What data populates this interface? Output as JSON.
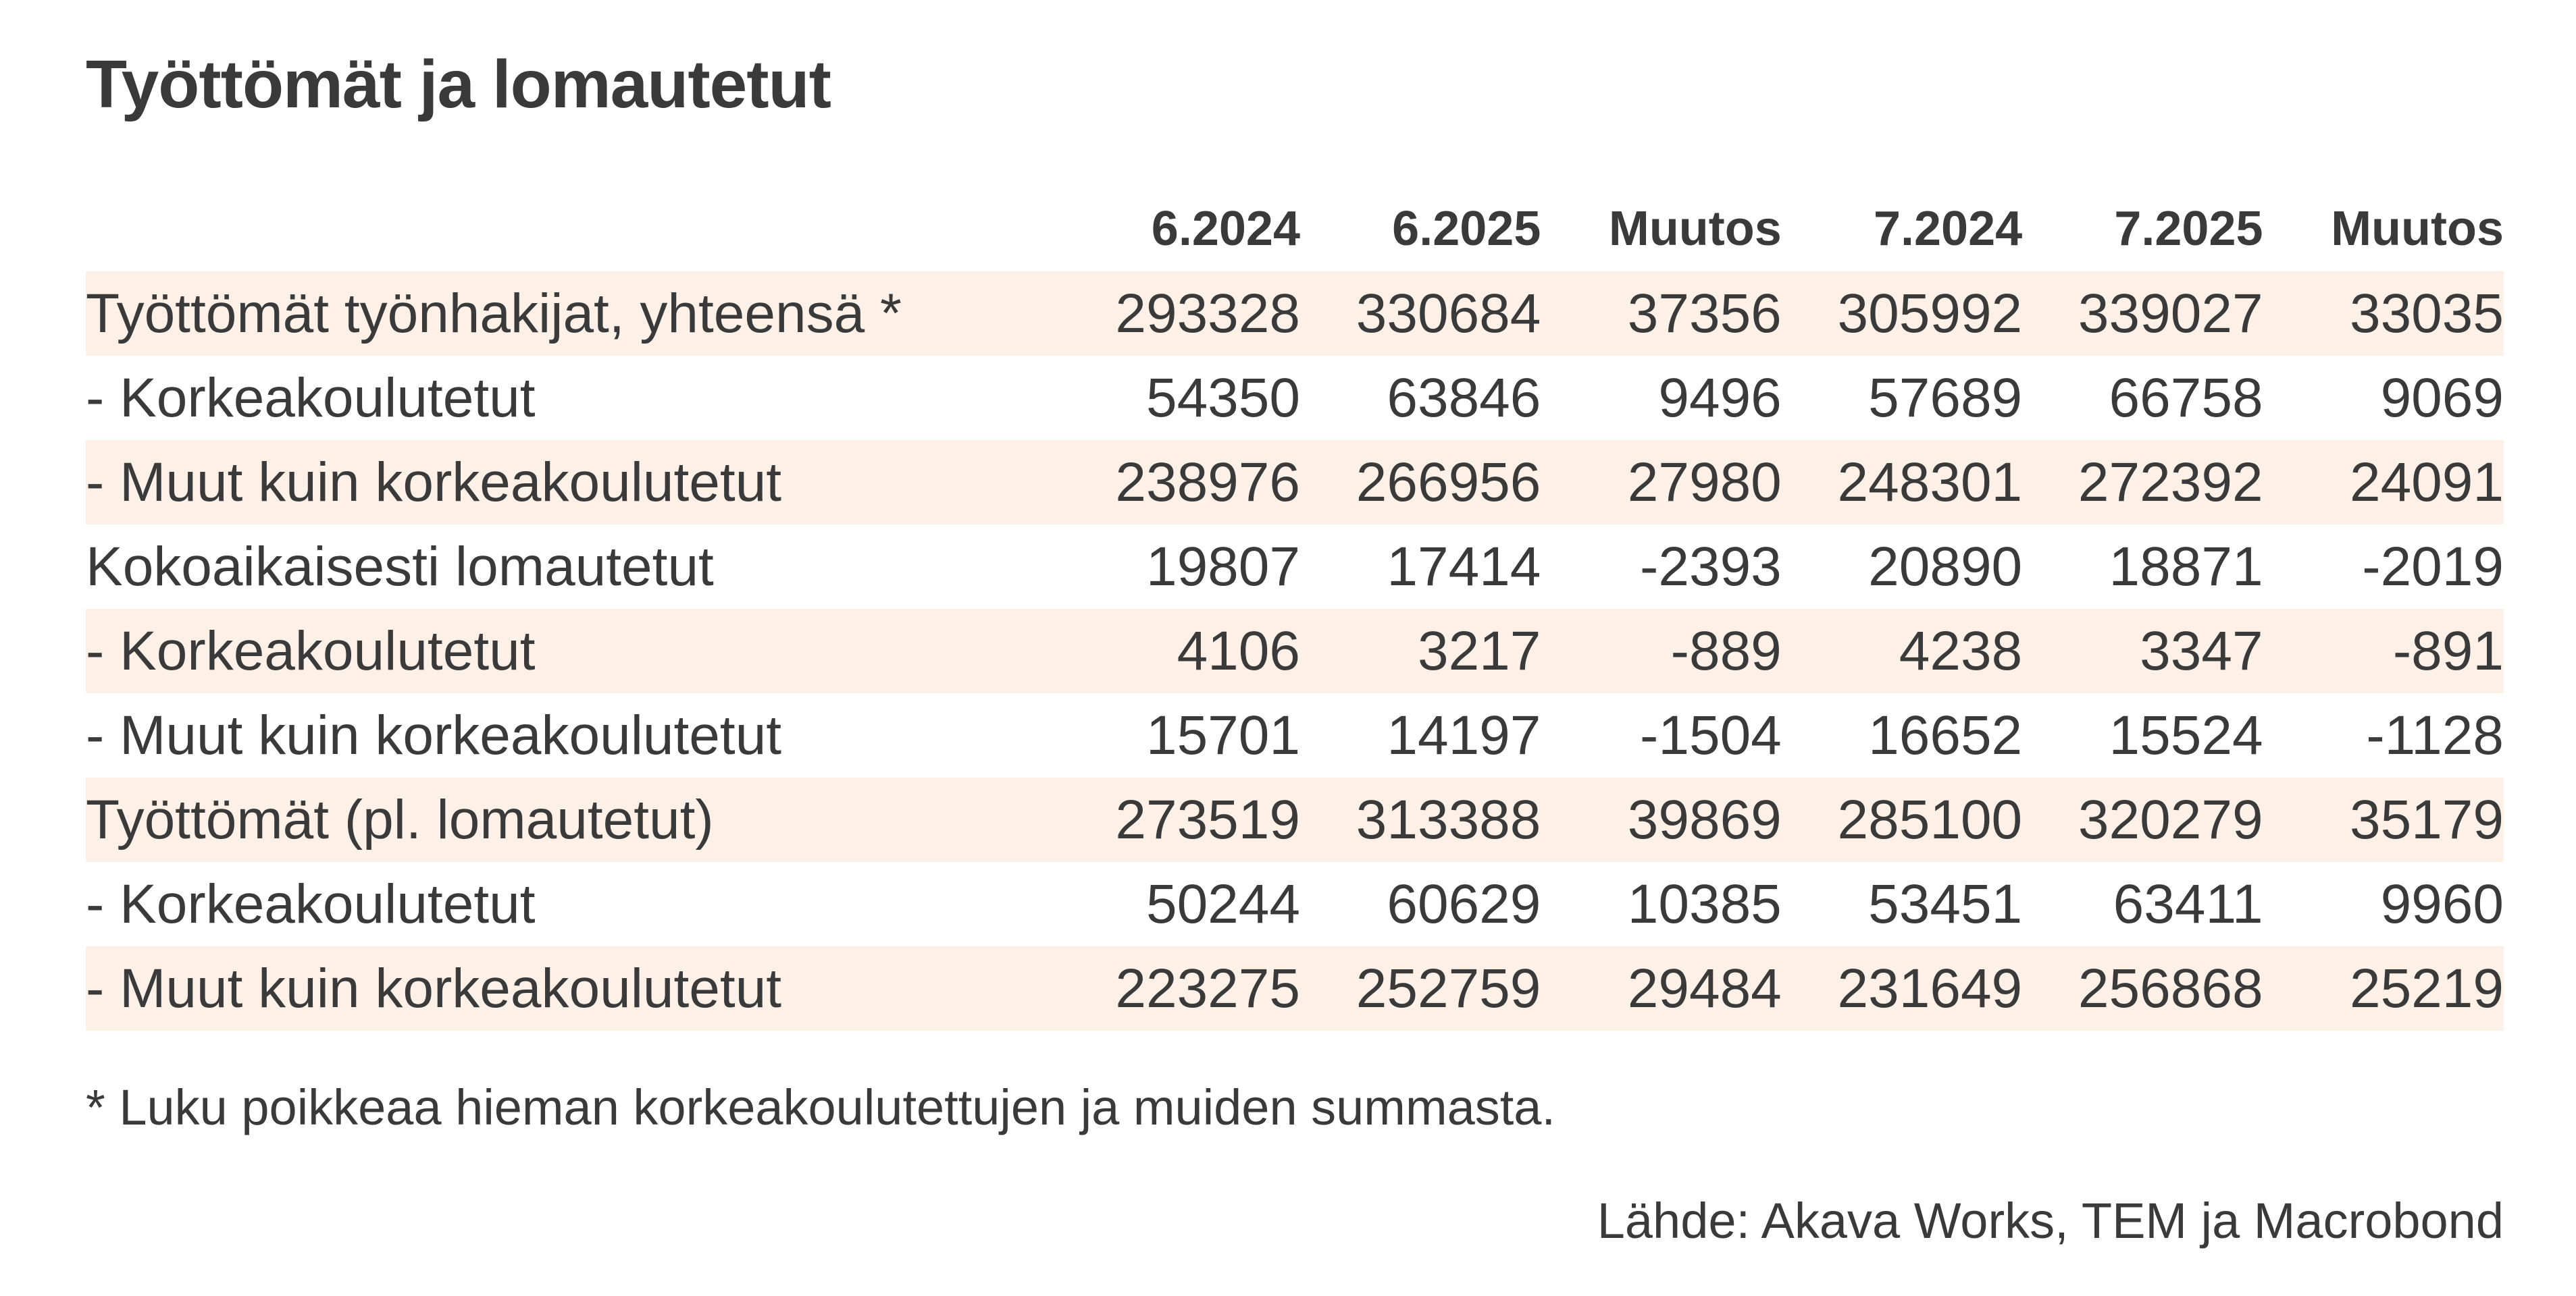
{
  "chart_data": {
    "type": "table",
    "title": "Työttömät ja lomautetut",
    "columns": [
      "",
      "6.2024",
      "6.2025",
      "Muutos",
      "7.2024",
      "7.2025",
      "Muutos"
    ],
    "rows": [
      {
        "label": "Työttömät työnhakijat, yhteensä *",
        "values": [
          "293328",
          "330684",
          "37356",
          "305992",
          "339027",
          "33035"
        ]
      },
      {
        "label": "- Korkeakoulutetut",
        "values": [
          "54350",
          "63846",
          "9496",
          "57689",
          "66758",
          "9069"
        ]
      },
      {
        "label": "- Muut kuin korkeakoulutetut",
        "values": [
          "238976",
          "266956",
          "27980",
          "248301",
          "272392",
          "24091"
        ]
      },
      {
        "label": "Kokoaikaisesti lomautetut",
        "values": [
          "19807",
          "17414",
          "-2393",
          "20890",
          "18871",
          "-2019"
        ]
      },
      {
        "label": "- Korkeakoulutetut",
        "values": [
          "4106",
          "3217",
          "-889",
          "4238",
          "3347",
          "-891"
        ]
      },
      {
        "label": "- Muut kuin korkeakoulutetut",
        "values": [
          "15701",
          "14197",
          "-1504",
          "16652",
          "15524",
          "-1128"
        ]
      },
      {
        "label": "Työttömät (pl. lomautetut)",
        "values": [
          "273519",
          "313388",
          "39869",
          "285100",
          "320279",
          "35179"
        ]
      },
      {
        "label": "- Korkeakoulutetut",
        "values": [
          "50244",
          "60629",
          "10385",
          "53451",
          "63411",
          "9960"
        ]
      },
      {
        "label": "- Muut kuin korkeakoulutetut",
        "values": [
          "223275",
          "252759",
          "29484",
          "231649",
          "256868",
          "25219"
        ]
      }
    ],
    "row_shading_color": "#fdf1e7",
    "footnote": "* Luku poikkeaa hieman korkeakoulutettujen ja muiden summasta.",
    "source": "Lähde: Akava Works, TEM ja Macrobond"
  }
}
